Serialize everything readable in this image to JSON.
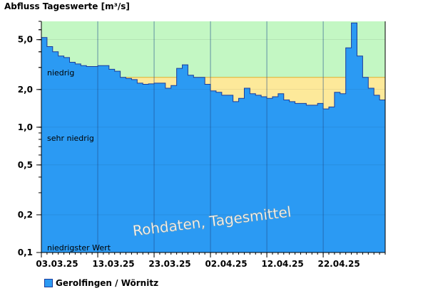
{
  "chart_data": {
    "type": "area",
    "title": "Abfluss Tageswerte [m³/s]",
    "y_scale": "log",
    "ylim": [
      0.1,
      7.0
    ],
    "yticks": [
      {
        "value": 5.0,
        "label": "5,0"
      },
      {
        "value": 2.0,
        "label": "2,0"
      },
      {
        "value": 1.0,
        "label": "1,0"
      },
      {
        "value": 0.5,
        "label": "0,5"
      },
      {
        "value": 0.2,
        "label": "0,2"
      },
      {
        "value": 0.1,
        "label": "0,1"
      }
    ],
    "xticks": [
      "03.03.25",
      "13.03.25",
      "23.03.25",
      "02.04.25",
      "12.04.25",
      "22.04.25"
    ],
    "bands": [
      {
        "label": "",
        "from": 2.5,
        "to": 7.0,
        "color": "#c3f7c3"
      },
      {
        "label": "niedrig",
        "from": 0.75,
        "to": 2.5,
        "color": "#fde99a"
      },
      {
        "label": "sehr niedrig",
        "from": 0.1,
        "to": 0.75,
        "color": "#fdd0a0"
      },
      {
        "label": "niedrigster Wert",
        "from": 0.1,
        "to": 0.1,
        "color": ""
      }
    ],
    "annotation": "Rohdaten, Tagesmittel",
    "series": [
      {
        "name": "Gerolfingen / Wörnitz",
        "color": "#2b9af3",
        "start_date": "2025-03-03",
        "values": [
          5.2,
          4.4,
          4.0,
          3.7,
          3.6,
          3.3,
          3.2,
          3.1,
          3.05,
          3.05,
          3.1,
          3.1,
          2.9,
          2.8,
          2.5,
          2.45,
          2.4,
          2.25,
          2.2,
          2.22,
          2.25,
          2.25,
          2.05,
          2.15,
          2.95,
          3.15,
          2.6,
          2.5,
          2.5,
          2.2,
          1.95,
          1.9,
          1.8,
          1.8,
          1.6,
          1.7,
          2.05,
          1.85,
          1.8,
          1.75,
          1.7,
          1.75,
          1.85,
          1.65,
          1.6,
          1.55,
          1.55,
          1.5,
          1.5,
          1.55,
          1.4,
          1.45,
          1.9,
          1.85,
          4.3,
          6.8,
          3.7,
          2.5,
          2.05,
          1.8,
          1.65
        ]
      }
    ]
  }
}
